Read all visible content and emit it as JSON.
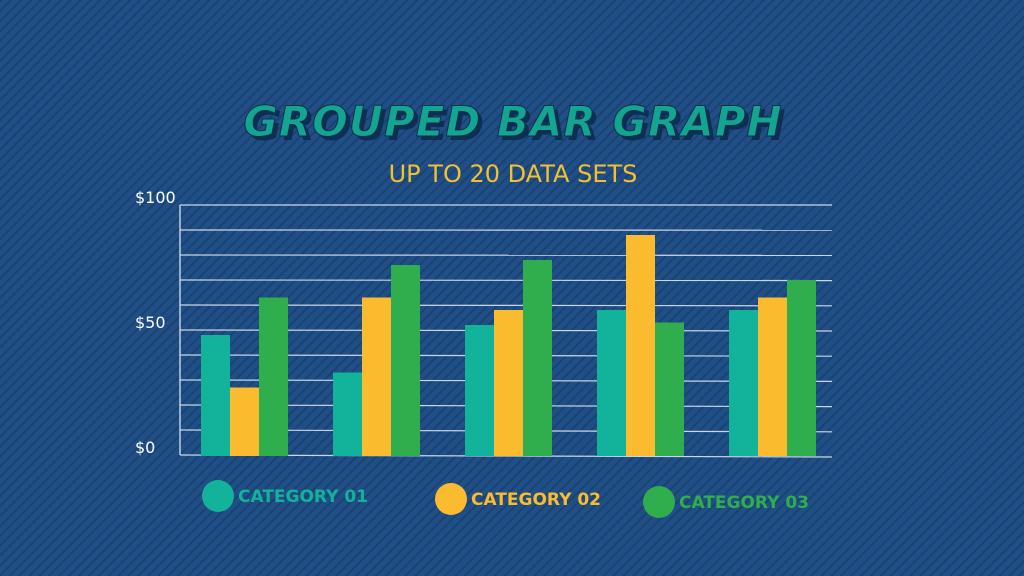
{
  "chart_data": {
    "type": "bar",
    "title": "GROUPED BAR GRAPH",
    "subtitle": "UP TO 20 DATA SETS",
    "categories": [
      "",
      "",
      "",
      "",
      ""
    ],
    "series": [
      {
        "name": "CATEGORY 01",
        "color": "#12b39a",
        "values": [
          48,
          33,
          52,
          58,
          58
        ]
      },
      {
        "name": "CATEGORY 02",
        "color": "#fbbb2e",
        "values": [
          27,
          63,
          58,
          88,
          63
        ]
      },
      {
        "name": "CATEGORY 03",
        "color": "#30ad4d",
        "values": [
          63,
          76,
          78,
          53,
          70
        ]
      }
    ],
    "yticks": [
      "$0",
      "$50",
      "$100"
    ],
    "ytick_values": [
      0,
      50,
      100
    ],
    "ylim": [
      0,
      100
    ],
    "grid": true,
    "legend_position": "bottom"
  },
  "colors": {
    "background": "#1f4f86",
    "title_fill": "#13a58f",
    "title_shadow": "#0f2f52",
    "subtitle": "#f4c032",
    "grid": "#c9d6e6"
  }
}
